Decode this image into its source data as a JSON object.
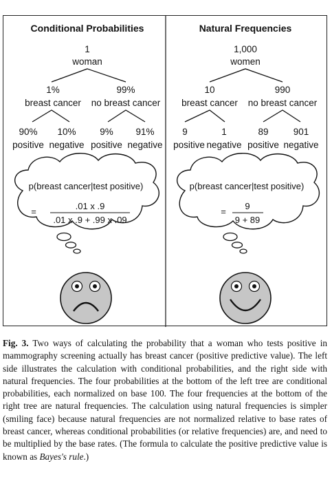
{
  "left_panel": {
    "title": "Conditional Probabilities",
    "root": {
      "value": "1",
      "label": "woman"
    },
    "branches": [
      {
        "value": "1%",
        "label": "breast cancer"
      },
      {
        "value": "99%",
        "label": "no breast cancer"
      }
    ],
    "leaves": [
      {
        "value": "90%",
        "label": "positive"
      },
      {
        "value": "10%",
        "label": "negative"
      },
      {
        "value": "9%",
        "label": "positive"
      },
      {
        "value": "91%",
        "label": "negative"
      }
    ],
    "formula": {
      "heading": "p(breast cancer|test positive)",
      "equals": "=",
      "numerator": ".01 x .9",
      "denominator": ".01 x .9 + .99 x .09"
    },
    "face": "frowning-face"
  },
  "right_panel": {
    "title": "Natural Frequencies",
    "root": {
      "value": "1,000",
      "label": "women"
    },
    "branches": [
      {
        "value": "10",
        "label": "breast cancer"
      },
      {
        "value": "990",
        "label": "no breast cancer"
      }
    ],
    "leaves": [
      {
        "value": "9",
        "label": "positive"
      },
      {
        "value": "1",
        "label": "negative"
      },
      {
        "value": "89",
        "label": "positive"
      },
      {
        "value": "901",
        "label": "negative"
      }
    ],
    "formula": {
      "heading": "p(breast cancer|test positive)",
      "equals": "=",
      "numerator": "9",
      "denominator": "9 + 89"
    },
    "face": "smiling-face"
  },
  "colors": {
    "face_fill": "#c6c6c6",
    "line": "#111111"
  },
  "caption": {
    "label": "Fig. 3.",
    "text_before": " Two ways of calculating the probability that a woman who tests positive in mammography screening actually has breast cancer (positive predictive value). The left side illustrates the calculation with conditional probabilities, and the right side with natural frequencies. The four probabilities at the bottom of the left tree are conditional probabilities, each normalized on base 100. The four frequencies at the bottom of the right tree are natural frequencies. The calculation using natural frequencies is simpler (smiling face) because natural frequencies are not normalized relative to base rates of breast cancer, whereas conditional probabilities (or relative frequencies) are, and need to be multiplied by the base rates. (The formula to calculate the positive predictive value is known as ",
    "italic": "Bayes's rule",
    "text_after": ".)"
  }
}
